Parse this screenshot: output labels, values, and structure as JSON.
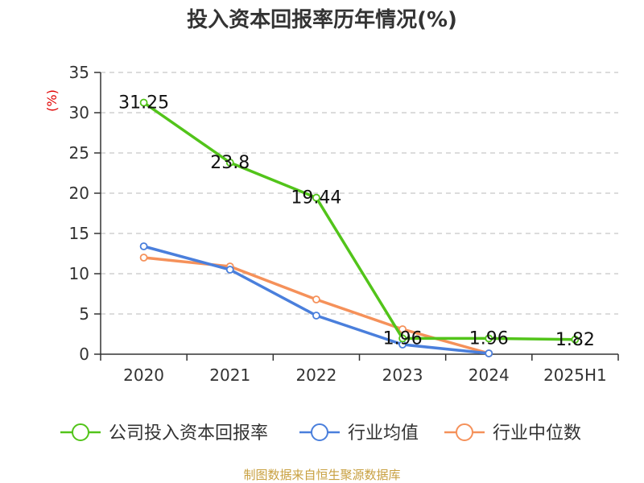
{
  "chart_data": {
    "type": "line",
    "title": "投入资本回报率历年情况(%)",
    "ylabel": "(%)",
    "xlabel": "",
    "categories": [
      "2020",
      "2021",
      "2022",
      "2023",
      "2024",
      "2025H1"
    ],
    "ylim": [
      0,
      35
    ],
    "yticks": [
      0,
      5,
      10,
      15,
      20,
      25,
      30,
      35
    ],
    "grid": true,
    "legend_position": "bottom",
    "series": [
      {
        "name": "公司投入资本回报率",
        "color": "#52c41a",
        "values": [
          31.25,
          23.8,
          19.44,
          1.96,
          1.96,
          1.82
        ],
        "labels": [
          "31.25",
          "23.8",
          "19.44",
          "1.96",
          "1.96",
          "1.82"
        ]
      },
      {
        "name": "行业均值",
        "color": "#4a7fdc",
        "values": [
          13.4,
          10.5,
          4.8,
          1.2,
          0.1,
          null
        ]
      },
      {
        "name": "行业中位数",
        "color": "#f5915a",
        "values": [
          12.0,
          10.9,
          6.8,
          3.1,
          0.1,
          null
        ]
      }
    ]
  },
  "source": "制图数据来自恒生聚源数据库"
}
